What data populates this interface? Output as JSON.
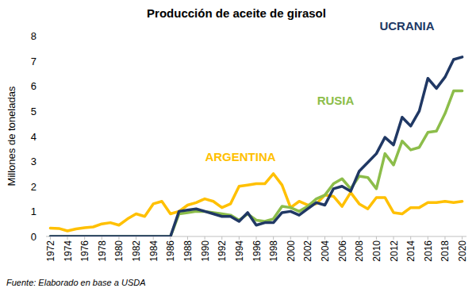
{
  "chart_data": {
    "type": "line",
    "title": "Producción de aceite de girasol",
    "y_label": "Millones de toneladas",
    "source": "Fuente: Elaborado en base a USDA",
    "x": [
      1972,
      1973,
      1974,
      1975,
      1976,
      1977,
      1978,
      1979,
      1980,
      1981,
      1982,
      1983,
      1984,
      1985,
      1986,
      1987,
      1988,
      1989,
      1990,
      1991,
      1992,
      1993,
      1994,
      1995,
      1996,
      1997,
      1998,
      1999,
      2000,
      2001,
      2002,
      2003,
      2004,
      2005,
      2006,
      2007,
      2008,
      2009,
      2010,
      2011,
      2012,
      2013,
      2014,
      2015,
      2016,
      2017,
      2018,
      2019,
      2020
    ],
    "xlim": [
      1971.5,
      2020.5
    ],
    "xticks": [
      1972,
      1974,
      1976,
      1978,
      1980,
      1982,
      1984,
      1986,
      1988,
      1990,
      1992,
      1994,
      1996,
      1998,
      2000,
      2002,
      2004,
      2006,
      2008,
      2010,
      2012,
      2014,
      2016,
      2018,
      2020
    ],
    "ylim": [
      0,
      8
    ],
    "yticks": [
      0,
      1,
      2,
      3,
      4,
      5,
      6,
      7,
      8
    ],
    "grid": false,
    "series": [
      {
        "name": "UCRANIA",
        "color": "#203864",
        "values": [
          0,
          0,
          0,
          0,
          0,
          0,
          0,
          0,
          0,
          0,
          0,
          0,
          0,
          0,
          0,
          1.0,
          1.05,
          1.1,
          1.0,
          0.9,
          0.8,
          0.8,
          0.6,
          0.95,
          0.45,
          0.55,
          0.55,
          0.95,
          1.0,
          0.85,
          1.1,
          1.35,
          1.25,
          1.9,
          2.0,
          1.8,
          2.6,
          2.95,
          3.3,
          3.95,
          3.65,
          4.75,
          4.4,
          5.0,
          6.3,
          5.9,
          6.35,
          7.05,
          7.15
        ]
      },
      {
        "name": "RUSIA",
        "color": "#8cbd4a",
        "values": [
          0,
          0,
          0,
          0,
          0,
          0,
          0,
          0,
          0,
          0,
          0,
          0,
          0,
          0,
          0,
          0.9,
          0.95,
          1.0,
          1.0,
          0.95,
          0.9,
          0.85,
          0.65,
          0.9,
          0.65,
          0.6,
          0.7,
          1.2,
          1.15,
          1.0,
          1.2,
          1.5,
          1.65,
          2.1,
          2.3,
          1.9,
          2.4,
          2.35,
          1.9,
          3.3,
          2.85,
          3.8,
          3.45,
          3.55,
          4.15,
          4.2,
          4.9,
          5.8,
          5.8
        ]
      },
      {
        "name": "ARGENTINA",
        "color": "#ffc000",
        "values": [
          0.33,
          0.32,
          0.22,
          0.3,
          0.35,
          0.38,
          0.5,
          0.55,
          0.45,
          0.7,
          0.9,
          0.8,
          1.3,
          1.4,
          0.9,
          1.0,
          1.25,
          1.35,
          1.5,
          1.4,
          1.15,
          1.3,
          2.0,
          2.05,
          2.1,
          2.1,
          2.5,
          2.05,
          1.15,
          1.4,
          1.25,
          1.3,
          1.65,
          1.6,
          1.2,
          1.75,
          1.3,
          1.1,
          1.55,
          1.55,
          0.95,
          0.9,
          1.15,
          1.15,
          1.35,
          1.35,
          1.4,
          1.35,
          1.4
        ]
      }
    ]
  }
}
